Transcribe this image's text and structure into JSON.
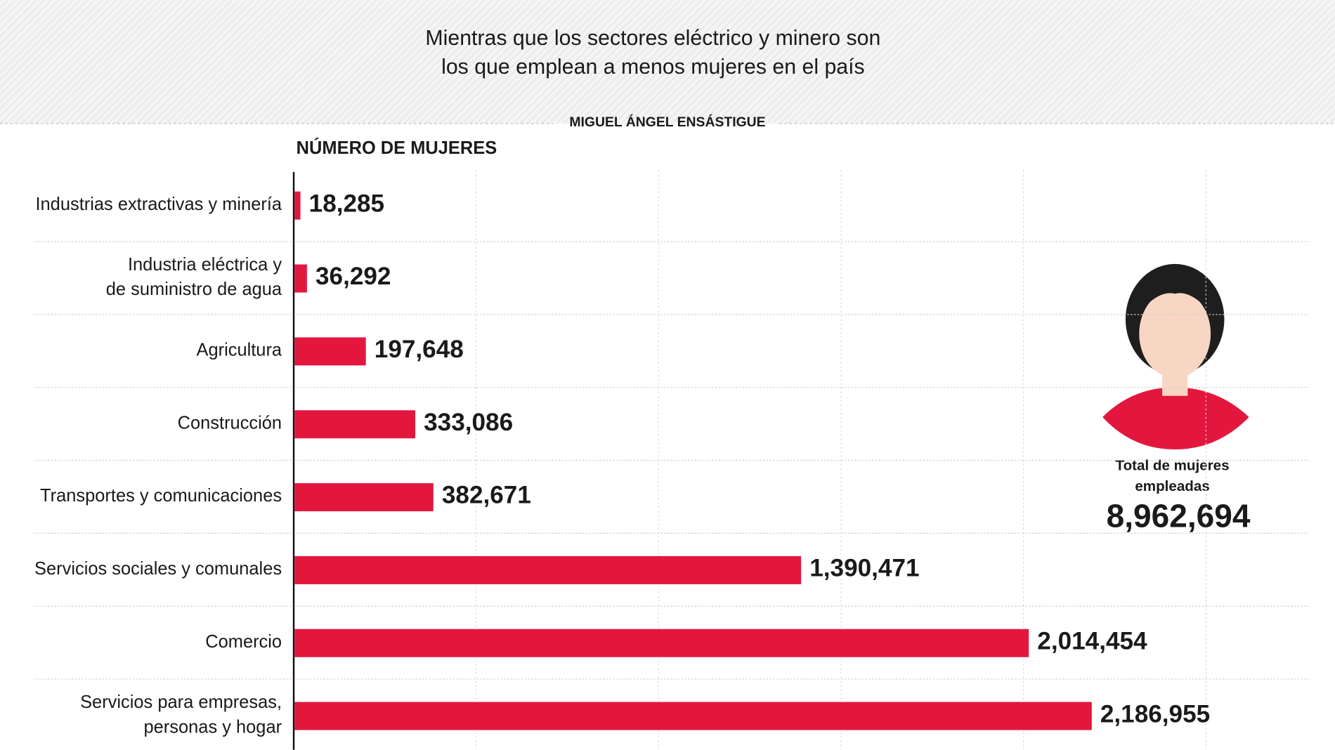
{
  "chart_data": {
    "type": "hbar",
    "subtitle": [
      "Mientras que los sectores eléctrico y minero son",
      "los que emplean a menos mujeres en el país"
    ],
    "author": "MIGUEL ÁNGEL ENSÁSTIGUE",
    "x_label": "NÚMERO DE MUJERES",
    "categories": [
      [
        "Industrias extractivas y minería"
      ],
      [
        "Industria eléctrica y",
        "de suministro de agua"
      ],
      [
        "Agricultura"
      ],
      [
        "Construcción"
      ],
      [
        "Transportes y comunicaciones"
      ],
      [
        "Servicios sociales y comunales"
      ],
      [
        "Comercio"
      ],
      [
        "Servicios para empresas,",
        "personas y hogar"
      ]
    ],
    "values": [
      18285,
      36292,
      197648,
      333086,
      382671,
      1390471,
      2014454,
      2186955
    ],
    "value_labels": [
      "18,285",
      "36,292",
      "197,648",
      "333,086",
      "382,671",
      "1,390,471",
      "2,014,454",
      "2,186,955"
    ],
    "color": "#e3173e",
    "xlim": [
      0,
      2800000
    ],
    "xticks": [
      0,
      500000,
      1000000,
      1500000,
      2000000,
      2500000
    ],
    "grid": true,
    "total": {
      "label": [
        "Total de mujeres",
        "empleadas"
      ],
      "value": 8962694,
      "value_label": "8,962,694"
    }
  }
}
